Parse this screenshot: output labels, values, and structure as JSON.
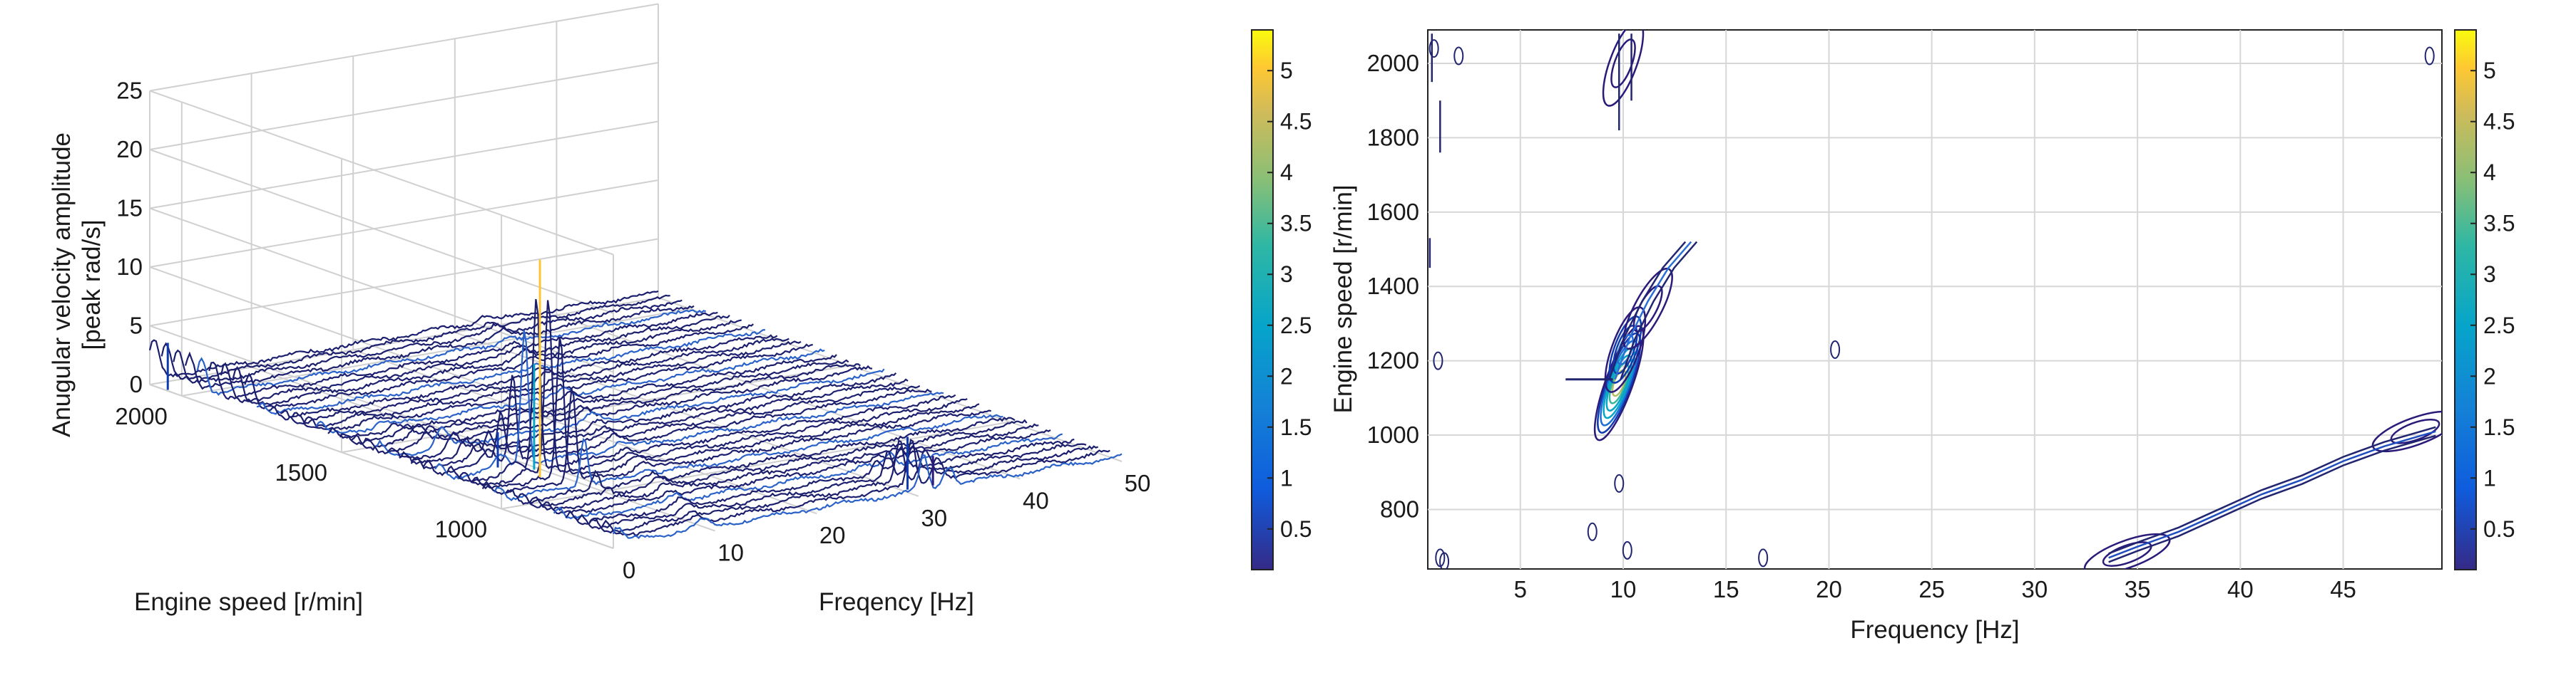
{
  "chart_data": [
    {
      "type": "waterfall3d",
      "zlabel": [
        "Anugular velocity amplitude",
        "[peak rad/s]"
      ],
      "xlabel": "Freqency [Hz]",
      "ylabel": "Engine speed [r/min]",
      "x_ticks": [
        "0",
        "10",
        "20",
        "30",
        "40",
        "50"
      ],
      "y_ticks": [
        "2000",
        "1500",
        "1000"
      ],
      "z_ticks": [
        "0",
        "5",
        "10",
        "15",
        "20",
        "25"
      ],
      "xlim": [
        0,
        50
      ],
      "ylim": [
        650,
        2100
      ],
      "zlim": [
        0,
        25
      ],
      "grid": true,
      "colorbar": {
        "ticks": [
          "0.5",
          "1",
          "1.5",
          "2",
          "2.5",
          "3",
          "3.5",
          "4",
          "4.5",
          "5"
        ],
        "range": [
          0.1,
          5.4
        ],
        "colormap": "parula"
      },
      "peaks": [
        {
          "x": 8.5,
          "y": 1150,
          "z": 18.5
        },
        {
          "x": 9.5,
          "y": 1200,
          "z": 9.0
        },
        {
          "x": 7.5,
          "y": 1250,
          "z": 3.0
        },
        {
          "x": 30.5,
          "y": 700,
          "z": 4.5
        },
        {
          "x": 33.0,
          "y": 700,
          "z": 2.5
        },
        {
          "x": 0.2,
          "y": 2050,
          "z": 4.0
        }
      ]
    },
    {
      "type": "contour",
      "xlabel": "Frequency [Hz]",
      "ylabel": "Engine speed [r/min]",
      "x_ticks": [
        "5",
        "10",
        "15",
        "20",
        "25",
        "30",
        "35",
        "40",
        "45"
      ],
      "y_ticks": [
        "800",
        "1000",
        "1200",
        "1400",
        "1600",
        "1800",
        "2000"
      ],
      "xlim": [
        0.5,
        49.8
      ],
      "ylim": [
        640,
        2090
      ],
      "grid": true,
      "colorbar": {
        "ticks": [
          "0.5",
          "1",
          "1.5",
          "2",
          "2.5",
          "3",
          "3.5",
          "4",
          "4.5",
          "5"
        ],
        "range": [
          0.1,
          5.4
        ],
        "colormap": "parula"
      },
      "features": [
        {
          "x": 9.8,
          "y": 1140,
          "level": 4.6
        },
        {
          "x": 10.1,
          "y": 1230,
          "level": 2.5
        },
        {
          "x": 11.2,
          "y": 1340,
          "level": 1.2
        },
        {
          "x": 34.5,
          "y": 680,
          "level": 1.0
        },
        {
          "x": 48.5,
          "y": 1010,
          "level": 0.6
        },
        {
          "x": 10.0,
          "y": 2000,
          "level": 0.5
        }
      ]
    }
  ]
}
